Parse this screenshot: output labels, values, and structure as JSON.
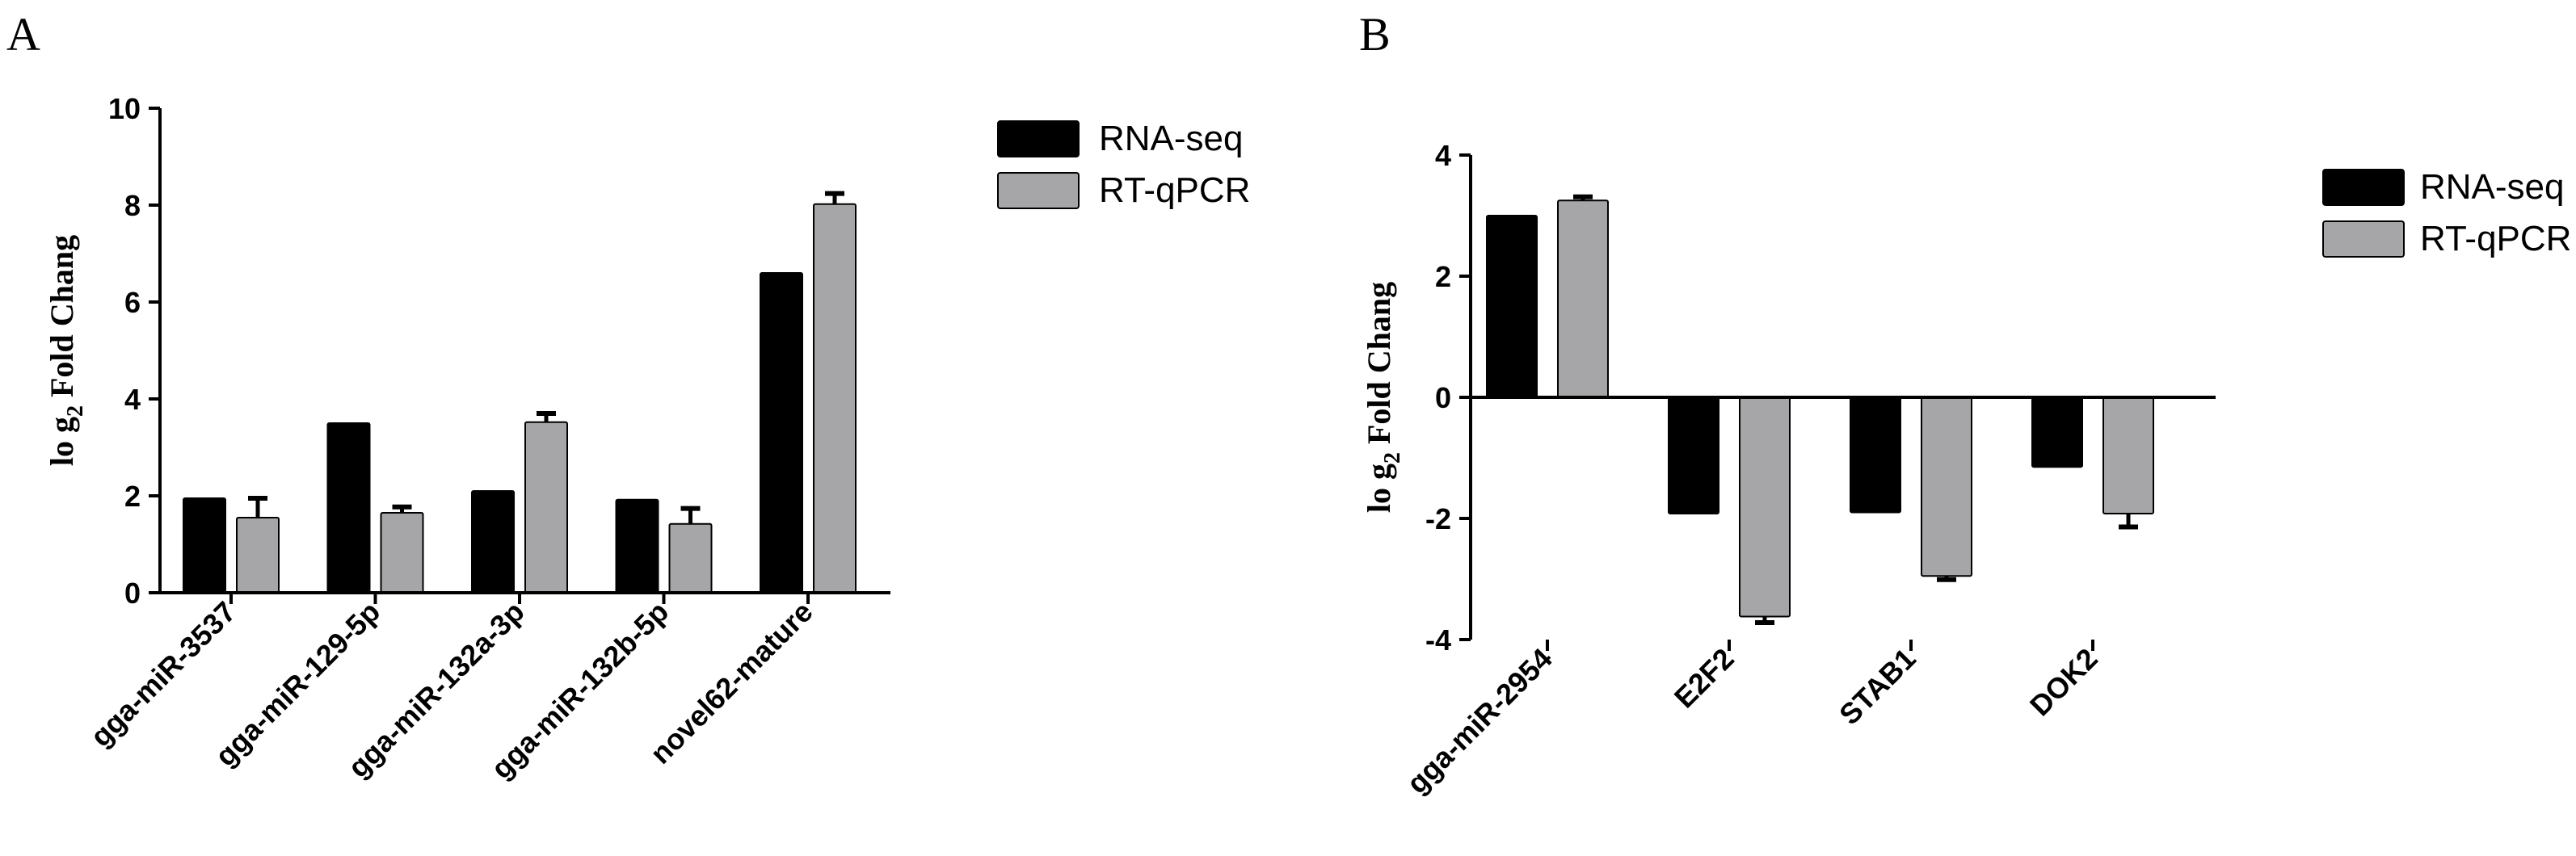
{
  "chart_data": [
    {
      "panel": "A",
      "type": "bar",
      "ylabel": "log2 Fold Chang",
      "ylabel_base": "lo g",
      "ylabel_sub": "2",
      "ylabel_rest": " Fold Chang",
      "ylim": [
        0,
        10
      ],
      "yticks": [
        "0",
        "2",
        "4",
        "6",
        "8",
        "10"
      ],
      "categories": [
        "gga-miR-3537",
        "gga-miR-129-5p",
        "gga-miR-132a-3p",
        "gga-miR-132b-5p",
        "novel62-mature"
      ],
      "series": [
        {
          "name": "RNA-seq",
          "color": "#000000",
          "values": [
            1.95,
            3.5,
            2.1,
            1.92,
            6.6
          ],
          "errors": [
            0,
            0,
            0,
            0,
            0
          ]
        },
        {
          "name": "RT-qPCR",
          "color": "#a6a6a8",
          "values": [
            1.55,
            1.65,
            3.52,
            1.42,
            8.02
          ],
          "errors": [
            0.4,
            0.12,
            0.18,
            0.32,
            0.22
          ]
        }
      ],
      "legend_position": "top-right"
    },
    {
      "panel": "B",
      "type": "bar",
      "ylabel": "log2 Fold Chang",
      "ylabel_base": "lo g",
      "ylabel_sub": "2",
      "ylabel_rest": " Fold Chang",
      "ylim": [
        -4,
        4
      ],
      "yticks": [
        "-4",
        "-2",
        "0",
        "2",
        "4"
      ],
      "categories": [
        "gga-miR-2954",
        "E2F2",
        "STAB1",
        "DOK2"
      ],
      "series": [
        {
          "name": "RNA-seq",
          "color": "#000000",
          "values": [
            3.0,
            -1.92,
            -1.9,
            -1.15
          ],
          "errors": [
            0,
            0,
            0,
            0
          ]
        },
        {
          "name": "RT-qPCR",
          "color": "#a6a6a8",
          "values": [
            3.25,
            -3.62,
            -2.95,
            -1.92
          ],
          "errors": [
            0.06,
            0.1,
            0.06,
            0.22
          ]
        }
      ],
      "legend_position": "top-right"
    }
  ]
}
